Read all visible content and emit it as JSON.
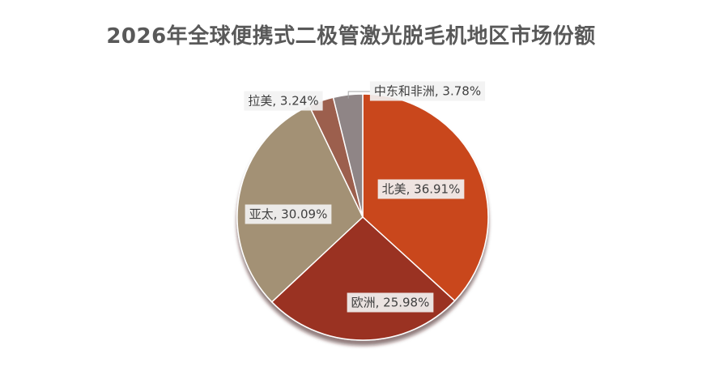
{
  "chart_data": {
    "type": "pie",
    "title": "2026年全球便携式二极管激光脱毛机地区市场份额",
    "slices": [
      {
        "name": "北美",
        "value": 36.91,
        "display": "北美, 36.91%",
        "color": "#c9461f"
      },
      {
        "name": "欧洲",
        "value": 25.98,
        "display": "欧洲, 25.98%",
        "color": "#9a3124"
      },
      {
        "name": "亚太",
        "value": 30.09,
        "display": "亚太, 30.09%",
        "color": "#a39175"
      },
      {
        "name": "拉美",
        "value": 3.24,
        "display": "拉美, 3.24%",
        "color": "#9c5e4e"
      },
      {
        "name": "中东和非洲",
        "value": 3.78,
        "display": "中东和非洲, 3.78%",
        "color": "#8f8586"
      }
    ],
    "legend": "none",
    "start_angle": "12 o'clock",
    "direction": "clockwise"
  }
}
